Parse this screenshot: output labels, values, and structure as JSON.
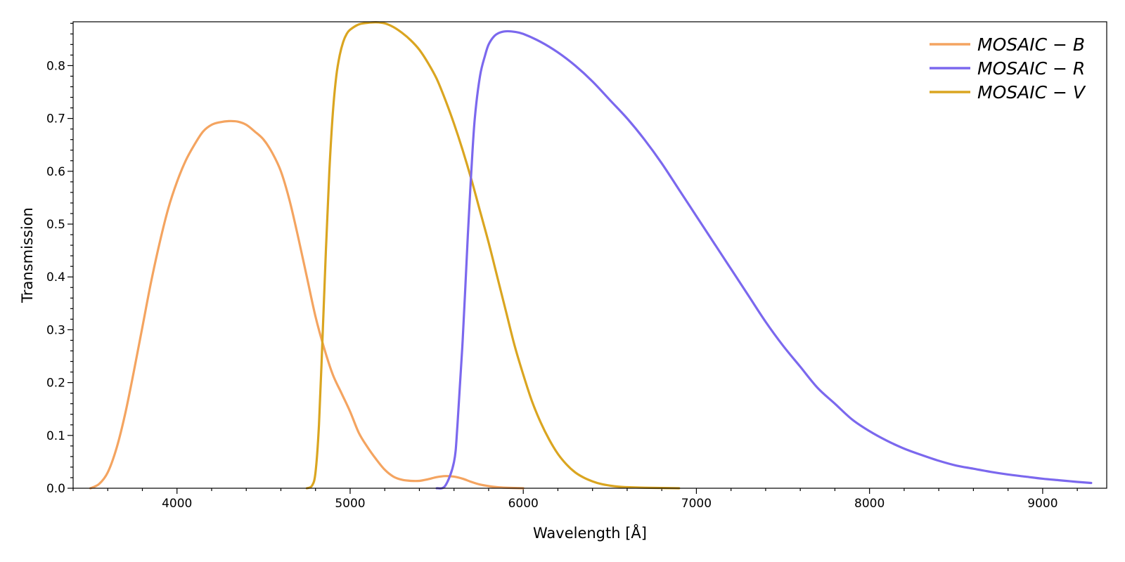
{
  "chart_data": {
    "type": "line",
    "xlabel": "Wavelength [Å]",
    "ylabel": "Transmission",
    "xlim": [
      3400,
      9370
    ],
    "ylim": [
      0.0,
      0.883
    ],
    "x_ticks": [
      4000,
      5000,
      6000,
      7000,
      8000,
      9000
    ],
    "x_minor_step": 200,
    "y_ticks": [
      0.0,
      0.1,
      0.2,
      0.3,
      0.4,
      0.5,
      0.6,
      0.7,
      0.8
    ],
    "y_tick_labels": [
      "0.0",
      "0.1",
      "0.2",
      "0.3",
      "0.4",
      "0.5",
      "0.6",
      "0.7",
      "0.8"
    ],
    "y_minor_step": 0.02,
    "grid": false,
    "legend_position": "top-right",
    "series": [
      {
        "name": "MOSAIC − B",
        "color": "#f4a460",
        "x": [
          3500,
          3550,
          3600,
          3650,
          3700,
          3750,
          3800,
          3850,
          3900,
          3950,
          4000,
          4050,
          4100,
          4150,
          4200,
          4250,
          4300,
          4350,
          4400,
          4450,
          4500,
          4550,
          4600,
          4650,
          4700,
          4750,
          4800,
          4850,
          4900,
          4950,
          5000,
          5050,
          5100,
          5150,
          5200,
          5250,
          5300,
          5350,
          5400,
          5450,
          5500,
          5550,
          5600,
          5650,
          5700,
          5750,
          5800,
          5850,
          5900,
          6000
        ],
        "y": [
          0.0,
          0.008,
          0.03,
          0.075,
          0.14,
          0.22,
          0.305,
          0.39,
          0.465,
          0.53,
          0.58,
          0.62,
          0.65,
          0.675,
          0.688,
          0.693,
          0.695,
          0.694,
          0.688,
          0.675,
          0.66,
          0.635,
          0.6,
          0.545,
          0.475,
          0.4,
          0.325,
          0.265,
          0.215,
          0.18,
          0.145,
          0.105,
          0.078,
          0.055,
          0.035,
          0.022,
          0.016,
          0.014,
          0.014,
          0.017,
          0.021,
          0.023,
          0.022,
          0.018,
          0.012,
          0.007,
          0.004,
          0.002,
          0.001,
          0.0
        ]
      },
      {
        "name": "MOSAIC − R",
        "color": "#7b68ee",
        "x": [
          5500,
          5550,
          5600,
          5620,
          5650,
          5680,
          5700,
          5720,
          5750,
          5780,
          5800,
          5830,
          5860,
          5900,
          5950,
          6000,
          6100,
          6200,
          6300,
          6400,
          6500,
          6600,
          6700,
          6800,
          6900,
          7000,
          7100,
          7200,
          7300,
          7400,
          7500,
          7600,
          7700,
          7800,
          7900,
          8000,
          8100,
          8200,
          8300,
          8400,
          8500,
          8600,
          8700,
          8800,
          8900,
          9000,
          9100,
          9200,
          9280
        ],
        "y": [
          0.0,
          0.005,
          0.05,
          0.12,
          0.28,
          0.48,
          0.6,
          0.7,
          0.78,
          0.82,
          0.84,
          0.855,
          0.862,
          0.865,
          0.864,
          0.86,
          0.845,
          0.825,
          0.8,
          0.77,
          0.735,
          0.7,
          0.66,
          0.615,
          0.565,
          0.515,
          0.465,
          0.415,
          0.365,
          0.315,
          0.27,
          0.23,
          0.19,
          0.16,
          0.13,
          0.108,
          0.09,
          0.075,
          0.063,
          0.052,
          0.043,
          0.037,
          0.031,
          0.026,
          0.022,
          0.018,
          0.015,
          0.012,
          0.01
        ]
      },
      {
        "name": "MOSAIC − V",
        "color": "#daa520",
        "x": [
          4750,
          4780,
          4800,
          4820,
          4840,
          4860,
          4880,
          4900,
          4920,
          4940,
          4960,
          4980,
          5000,
          5050,
          5100,
          5150,
          5200,
          5250,
          5300,
          5350,
          5400,
          5450,
          5500,
          5550,
          5600,
          5650,
          5700,
          5750,
          5800,
          5850,
          5900,
          5950,
          6000,
          6050,
          6100,
          6150,
          6200,
          6250,
          6300,
          6350,
          6400,
          6450,
          6500,
          6550,
          6600,
          6700,
          6800,
          6900
        ],
        "y": [
          0.0,
          0.005,
          0.03,
          0.12,
          0.28,
          0.45,
          0.6,
          0.71,
          0.78,
          0.82,
          0.845,
          0.86,
          0.868,
          0.878,
          0.881,
          0.882,
          0.88,
          0.873,
          0.862,
          0.848,
          0.83,
          0.805,
          0.775,
          0.735,
          0.69,
          0.64,
          0.585,
          0.525,
          0.465,
          0.4,
          0.335,
          0.27,
          0.215,
          0.165,
          0.125,
          0.092,
          0.065,
          0.045,
          0.03,
          0.02,
          0.013,
          0.008,
          0.005,
          0.003,
          0.002,
          0.001,
          0.0005,
          0.0
        ]
      }
    ]
  }
}
